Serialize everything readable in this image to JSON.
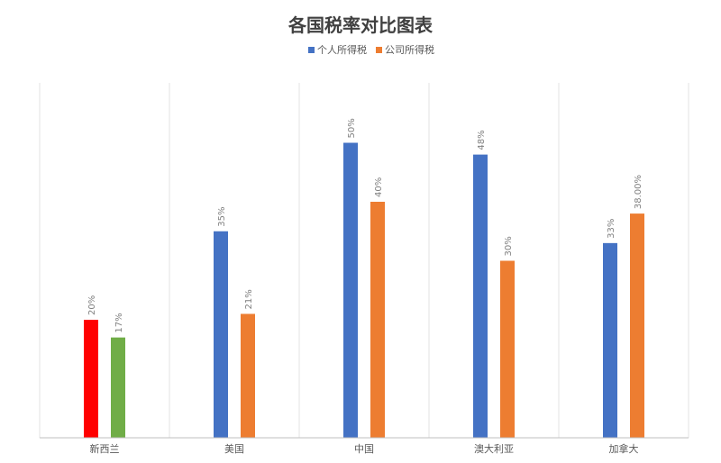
{
  "chart_data": {
    "type": "bar",
    "title": "各国税率对比图表",
    "categories": [
      "新西兰",
      "美国",
      "中国",
      "澳大利亚",
      "加拿大"
    ],
    "series": [
      {
        "name": "个人所得税",
        "color": "#4472C4",
        "values": [
          20,
          35,
          50,
          48,
          33
        ],
        "labels": [
          "20%",
          "35%",
          "50%",
          "48%",
          "33%"
        ]
      },
      {
        "name": "公司所得税",
        "color": "#ED7D31",
        "values": [
          17,
          21,
          40,
          30,
          38
        ],
        "labels": [
          "17%",
          "21%",
          "40%",
          "30%",
          "38.00%"
        ]
      }
    ],
    "point_colors": [
      {
        "category_index": 0,
        "series_index": 0,
        "color": "#FF0000"
      },
      {
        "category_index": 0,
        "series_index": 1,
        "color": "#70AD47"
      }
    ],
    "ylim": [
      0,
      60
    ],
    "y_axis_visible": false,
    "grid": "vertical category separators",
    "legend": "top-center"
  }
}
